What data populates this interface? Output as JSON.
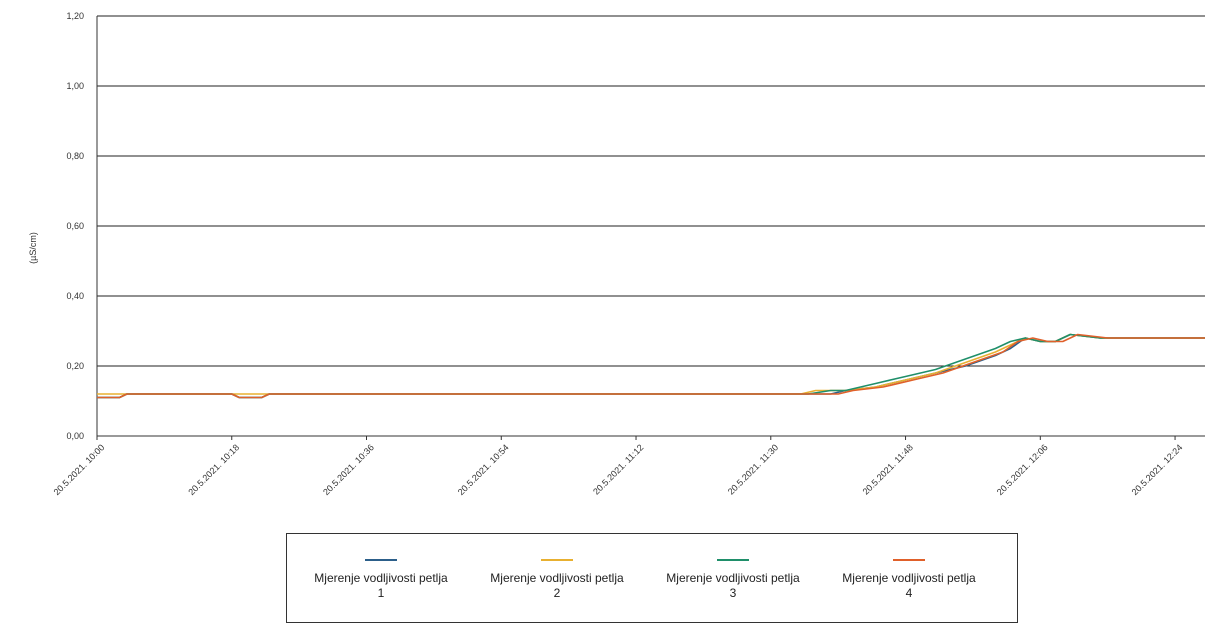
{
  "chart_data": {
    "type": "line",
    "ylabel": "(µS/cm)",
    "ylim": [
      0,
      1.2
    ],
    "yticks": [
      "0,00",
      "0,20",
      "0,40",
      "0,60",
      "0,80",
      "1,00",
      "1,20"
    ],
    "xticks": [
      "20.5.2021. 10:00",
      "20.5.2021. 10:18",
      "20.5.2021. 10:36",
      "20.5.2021. 10:54",
      "20.5.2021. 11:12",
      "20.5.2021. 11:30",
      "20.5.2021. 11:48",
      "20.5.2021. 12:06",
      "20.5.2021. 12:24"
    ],
    "xrange_minutes": [
      0,
      148
    ],
    "grid": true,
    "legend_position": "bottom",
    "series": [
      {
        "name": "Mjerenje vodljivosti petlja 1",
        "color": "#2c5f8a",
        "x": [
          0,
          3,
          4,
          18,
          19,
          22,
          23,
          94,
          95,
          98,
          100,
          104,
          108,
          112,
          116,
          120,
          122,
          124,
          126,
          128,
          130,
          134,
          138,
          148
        ],
        "y": [
          0.11,
          0.11,
          0.12,
          0.12,
          0.11,
          0.11,
          0.12,
          0.12,
          0.12,
          0.12,
          0.13,
          0.14,
          0.16,
          0.18,
          0.2,
          0.23,
          0.25,
          0.28,
          0.27,
          0.27,
          0.29,
          0.28,
          0.28,
          0.28
        ]
      },
      {
        "name": "Mjerenje vodljivosti petlja 2",
        "color": "#e8b030",
        "x": [
          0,
          3,
          4,
          18,
          19,
          22,
          23,
          94,
          96,
          100,
          104,
          108,
          112,
          116,
          120,
          122,
          124,
          126,
          128,
          130,
          134,
          138,
          148
        ],
        "y": [
          0.12,
          0.12,
          0.12,
          0.12,
          0.12,
          0.12,
          0.12,
          0.12,
          0.13,
          0.13,
          0.14,
          0.16,
          0.18,
          0.21,
          0.24,
          0.26,
          0.28,
          0.27,
          0.27,
          0.29,
          0.28,
          0.28,
          0.28
        ]
      },
      {
        "name": "Mjerenje vodljivosti petlja 3",
        "color": "#1f8f6a",
        "x": [
          0,
          3,
          4,
          18,
          19,
          22,
          23,
          93,
          95,
          98,
          100,
          104,
          108,
          112,
          116,
          120,
          122,
          124,
          126,
          128,
          130,
          134,
          138,
          148
        ],
        "y": [
          0.11,
          0.11,
          0.12,
          0.12,
          0.11,
          0.11,
          0.12,
          0.12,
          0.12,
          0.13,
          0.13,
          0.15,
          0.17,
          0.19,
          0.22,
          0.25,
          0.27,
          0.28,
          0.27,
          0.27,
          0.29,
          0.28,
          0.28,
          0.28
        ]
      },
      {
        "name": "Mjerenje vodljivosti petlja 4",
        "color": "#e0602a",
        "x": [
          0,
          3,
          4,
          18,
          19,
          22,
          23,
          94,
          96,
          99,
          101,
          105,
          109,
          113,
          117,
          121,
          123,
          125,
          127,
          129,
          131,
          135,
          139,
          148
        ],
        "y": [
          0.11,
          0.11,
          0.12,
          0.12,
          0.11,
          0.11,
          0.12,
          0.12,
          0.12,
          0.12,
          0.13,
          0.14,
          0.16,
          0.18,
          0.21,
          0.24,
          0.27,
          0.28,
          0.27,
          0.27,
          0.29,
          0.28,
          0.28,
          0.28
        ]
      }
    ]
  },
  "legend": [
    {
      "line1": "Mjerenje vodljivosti petlja",
      "line2": "1"
    },
    {
      "line1": "Mjerenje vodljivosti petlja",
      "line2": "2"
    },
    {
      "line1": "Mjerenje vodljivosti petlja",
      "line2": "3"
    },
    {
      "line1": "Mjerenje vodljivosti petlja",
      "line2": "4"
    }
  ]
}
